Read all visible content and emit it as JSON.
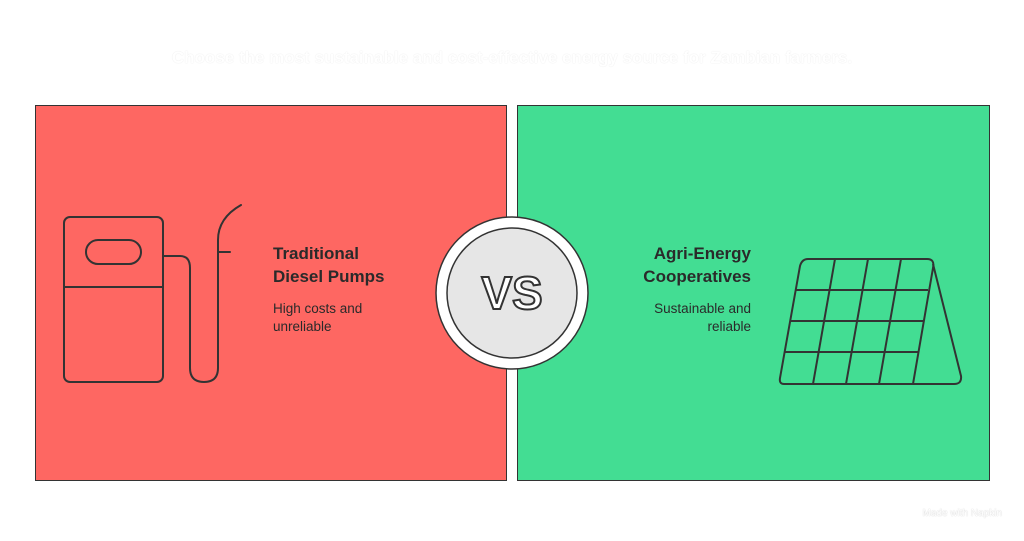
{
  "title": "Choose the most sustainable and cost-effective energy source for Zambian farmers.",
  "left": {
    "heading_line1": "Traditional",
    "heading_line2": "Diesel Pumps",
    "desc_line1": "High costs and",
    "desc_line2": "unreliable",
    "color": "#fe6762",
    "icon": "fuel-pump-icon"
  },
  "right": {
    "heading_line1": "Agri-Energy",
    "heading_line2": "Cooperatives",
    "desc_line1": "Sustainable and",
    "desc_line2": "reliable",
    "color": "#43dd93",
    "icon": "solar-panel-icon"
  },
  "vs": "VS",
  "credit": "Made with Napkin"
}
